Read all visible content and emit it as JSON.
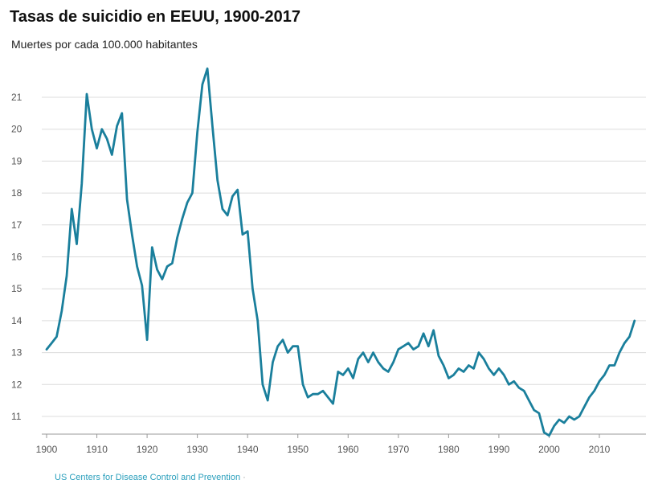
{
  "chart_data": {
    "type": "line",
    "title": "Tasas de suicidio en EEUU, 1900-2017",
    "subtitle": "Muertes por cada 100.000 habitantes",
    "xlabel": "",
    "ylabel": "",
    "xlim": [
      1900,
      2017
    ],
    "ylim": [
      10.5,
      22
    ],
    "x_ticks": [
      1900,
      1910,
      1920,
      1930,
      1940,
      1950,
      1960,
      1970,
      1980,
      1990,
      2000,
      2010
    ],
    "y_ticks": [
      11,
      12,
      13,
      14,
      15,
      16,
      17,
      18,
      19,
      20,
      21
    ],
    "grid": true,
    "legend": "none",
    "series": [
      {
        "color": "#1a7f9c",
        "x": [
          1900,
          1901,
          1902,
          1903,
          1904,
          1905,
          1906,
          1907,
          1908,
          1909,
          1910,
          1911,
          1912,
          1913,
          1914,
          1915,
          1916,
          1917,
          1918,
          1919,
          1920,
          1921,
          1922,
          1923,
          1924,
          1925,
          1926,
          1927,
          1928,
          1929,
          1930,
          1931,
          1932,
          1933,
          1934,
          1935,
          1936,
          1937,
          1938,
          1939,
          1940,
          1941,
          1942,
          1943,
          1944,
          1945,
          1946,
          1947,
          1948,
          1949,
          1950,
          1951,
          1952,
          1953,
          1954,
          1955,
          1956,
          1957,
          1958,
          1959,
          1960,
          1961,
          1962,
          1963,
          1964,
          1965,
          1966,
          1967,
          1968,
          1969,
          1970,
          1971,
          1972,
          1973,
          1974,
          1975,
          1976,
          1977,
          1978,
          1979,
          1980,
          1981,
          1982,
          1983,
          1984,
          1985,
          1986,
          1987,
          1988,
          1989,
          1990,
          1991,
          1992,
          1993,
          1994,
          1995,
          1996,
          1997,
          1998,
          1999,
          2000,
          2001,
          2002,
          2003,
          2004,
          2005,
          2006,
          2007,
          2008,
          2009,
          2010,
          2011,
          2012,
          2013,
          2014,
          2015,
          2016,
          2017
        ],
        "values": [
          13.1,
          13.3,
          13.5,
          14.3,
          15.4,
          17.5,
          16.4,
          18.3,
          21.1,
          20.0,
          19.4,
          20.0,
          19.7,
          19.2,
          20.1,
          20.5,
          17.8,
          16.7,
          15.7,
          15.1,
          13.4,
          16.3,
          15.6,
          15.3,
          15.7,
          15.8,
          16.6,
          17.2,
          17.7,
          18.0,
          19.9,
          21.4,
          21.9,
          20.1,
          18.4,
          17.5,
          17.3,
          17.9,
          18.1,
          16.7,
          16.8,
          15.0,
          14.0,
          12.0,
          11.5,
          12.7,
          13.2,
          13.4,
          13.0,
          13.2,
          13.2,
          12.0,
          11.6,
          11.7,
          11.7,
          11.8,
          11.6,
          11.4,
          12.4,
          12.3,
          12.5,
          12.2,
          12.8,
          13.0,
          12.7,
          13.0,
          12.7,
          12.5,
          12.4,
          12.7,
          13.1,
          13.2,
          13.3,
          13.1,
          13.2,
          13.6,
          13.2,
          13.7,
          12.9,
          12.6,
          12.2,
          12.3,
          12.5,
          12.4,
          12.6,
          12.5,
          13.0,
          12.8,
          12.5,
          12.3,
          12.5,
          12.3,
          12.0,
          12.1,
          11.9,
          11.8,
          11.5,
          11.2,
          11.1,
          10.5,
          10.4,
          10.7,
          10.9,
          10.8,
          11.0,
          10.9,
          11.0,
          11.3,
          11.6,
          11.8,
          12.1,
          12.3,
          12.6,
          12.6,
          13.0,
          13.3,
          13.5,
          14.0
        ]
      }
    ]
  },
  "source": {
    "label": "US Centers for Disease Control and Prevention",
    "separator": "·"
  }
}
